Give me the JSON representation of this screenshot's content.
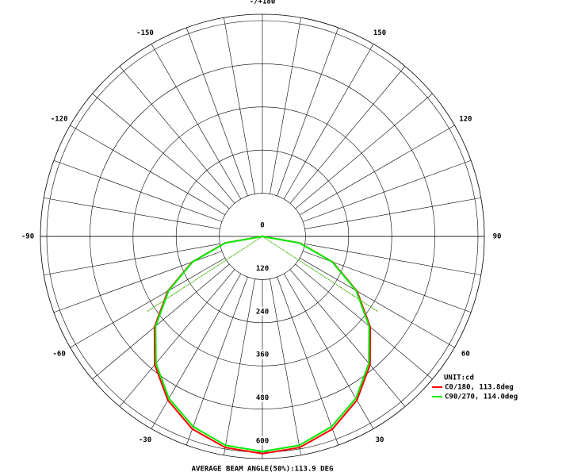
{
  "chart_data": {
    "type": "polar",
    "caption": "AVERAGE BEAM ANGLE(50%):113.9 DEG",
    "unit_label": "UNIT:cd",
    "theta": [
      -90,
      -80,
      -70,
      -60,
      -50,
      -40,
      -30,
      -20,
      -10,
      0,
      10,
      20,
      30,
      40,
      50,
      60,
      70,
      80,
      90
    ],
    "series": [
      {
        "name": "C0/180, 113.8deg",
        "color": "#ff0000",
        "beam_angle": 113.8,
        "values": [
          0,
          106,
          208,
          304,
          392,
          466,
          526,
          570,
          596,
          604,
          596,
          570,
          526,
          466,
          392,
          304,
          208,
          106,
          0
        ]
      },
      {
        "name": "C90/270, 114.0deg",
        "color": "#00ee00",
        "beam_angle": 114.0,
        "values": [
          0,
          105,
          206,
          301,
          388,
          461,
          520,
          563,
          590,
          598,
          590,
          563,
          520,
          461,
          388,
          301,
          206,
          105,
          0
        ]
      }
    ],
    "rlim": [
      0,
      600
    ],
    "rticks": [
      0,
      120,
      240,
      360,
      480,
      600
    ],
    "thetaticks": [
      {
        "value": 180,
        "label": "-/+180"
      },
      150,
      120,
      90,
      60,
      30,
      -30,
      -60,
      -90,
      -120,
      -150
    ]
  }
}
